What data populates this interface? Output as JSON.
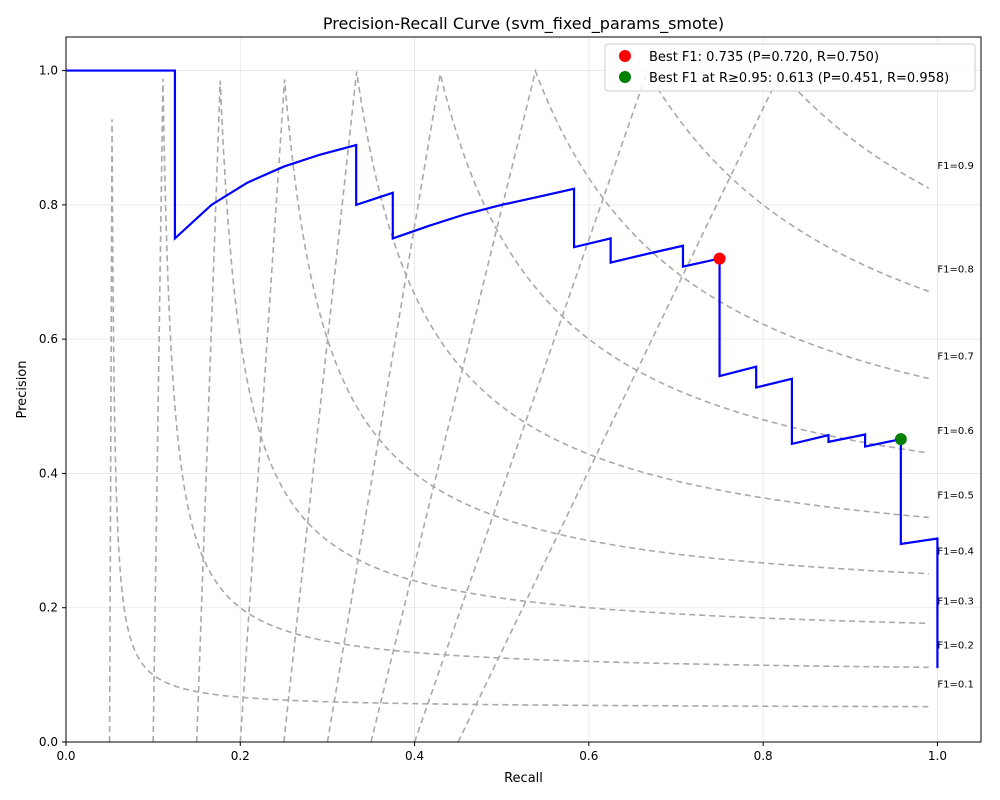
{
  "chart_data": {
    "type": "line",
    "title": "Precision-Recall Curve (svm_fixed_params_smote)",
    "xlabel": "Recall",
    "ylabel": "Precision",
    "xlim": [
      0.0,
      1.05
    ],
    "ylim": [
      0.0,
      1.05
    ],
    "grid": true,
    "legend_position": "top-right",
    "x_ticks": [
      "0.0",
      "0.2",
      "0.4",
      "0.6",
      "0.8",
      "1.0"
    ],
    "y_ticks": [
      "0.0",
      "0.2",
      "0.4",
      "0.6",
      "0.8",
      "1.0"
    ],
    "series": [
      {
        "color": "#0000ff",
        "points": [
          [
            0.0,
            1.0
          ],
          [
            0.125,
            1.0
          ],
          [
            0.125,
            0.75
          ],
          [
            0.167,
            0.8
          ],
          [
            0.208,
            0.833
          ],
          [
            0.25,
            0.857
          ],
          [
            0.292,
            0.875
          ],
          [
            0.333,
            0.889
          ],
          [
            0.333,
            0.8
          ],
          [
            0.375,
            0.818
          ],
          [
            0.375,
            0.75
          ],
          [
            0.417,
            0.769
          ],
          [
            0.458,
            0.786
          ],
          [
            0.5,
            0.8
          ],
          [
            0.542,
            0.812
          ],
          [
            0.583,
            0.824
          ],
          [
            0.583,
            0.737
          ],
          [
            0.625,
            0.75
          ],
          [
            0.625,
            0.714
          ],
          [
            0.667,
            0.727
          ],
          [
            0.708,
            0.739
          ],
          [
            0.708,
            0.708
          ],
          [
            0.75,
            0.72
          ],
          [
            0.75,
            0.545
          ],
          [
            0.792,
            0.559
          ],
          [
            0.792,
            0.528
          ],
          [
            0.833,
            0.541
          ],
          [
            0.833,
            0.444
          ],
          [
            0.875,
            0.457
          ],
          [
            0.875,
            0.447
          ],
          [
            0.917,
            0.458
          ],
          [
            0.917,
            0.44
          ],
          [
            0.958,
            0.451
          ],
          [
            0.958,
            0.295
          ],
          [
            1.0,
            0.303
          ],
          [
            1.0,
            0.11
          ]
        ]
      }
    ],
    "iso_f1": {
      "color": "#a9a9a9",
      "values": [
        0.1,
        0.2,
        0.3,
        0.4,
        0.5,
        0.6,
        0.7,
        0.8,
        0.9
      ],
      "labels": [
        "F1=0.1",
        "F1=0.2",
        "F1=0.3",
        "F1=0.4",
        "F1=0.5",
        "F1=0.6",
        "F1=0.7",
        "F1=0.8",
        "F1=0.9"
      ]
    },
    "markers": [
      {
        "label": "Best F1: 0.735 (P=0.720, R=0.750)",
        "recall": 0.75,
        "precision": 0.72,
        "color": "#ff0000"
      },
      {
        "label": "Best F1 at R≥0.95: 0.613 (P=0.451, R=0.958)",
        "recall": 0.958,
        "precision": 0.451,
        "color": "#008000"
      }
    ]
  }
}
